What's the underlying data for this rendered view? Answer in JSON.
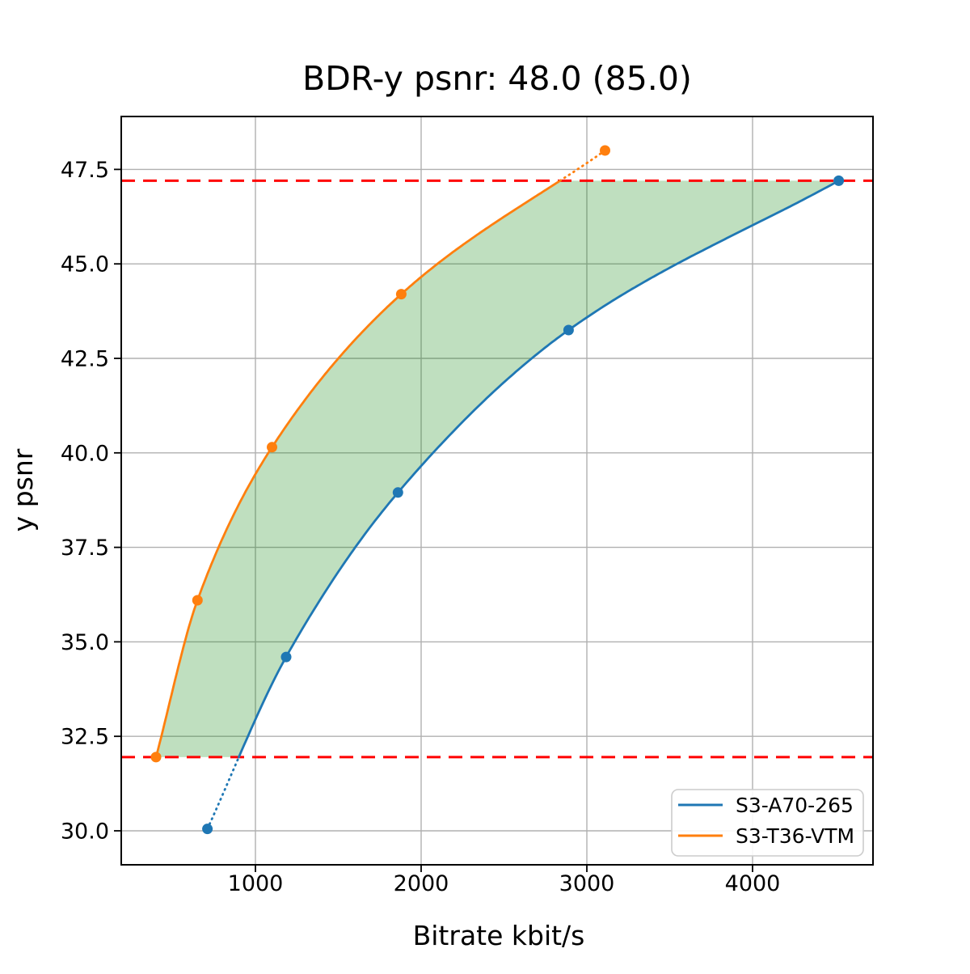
{
  "figure": {
    "background": "#ffffff"
  },
  "chart_data": {
    "type": "line",
    "title": "BDR-y psnr: 48.0 (85.0)",
    "xlabel": "Bitrate kbit/s",
    "ylabel": "y psnr",
    "xlim": [
      190,
      4727
    ],
    "ylim": [
      29.1,
      48.9
    ],
    "grid": true,
    "grid_color": "#b0b0b0",
    "xticks": {
      "values": [
        1000,
        2000,
        3000,
        4000
      ],
      "labels": [
        "1000",
        "2000",
        "3000",
        "4000"
      ]
    },
    "yticks": {
      "values": [
        30.0,
        32.5,
        35.0,
        37.5,
        40.0,
        42.5,
        45.0,
        47.5
      ],
      "labels": [
        "30.0",
        "32.5",
        "35.0",
        "37.5",
        "40.0",
        "42.5",
        "45.0",
        "47.5"
      ]
    },
    "series": [
      {
        "name": "S3-A70-265",
        "color": "#1f77b4",
        "marker": "circle",
        "points": [
          [
            710,
            30.05
          ],
          [
            1185,
            34.6
          ],
          [
            1860,
            38.95
          ],
          [
            2890,
            43.25
          ],
          [
            4520,
            47.2
          ]
        ]
      },
      {
        "name": "S3-T36-VTM",
        "color": "#ff7f0e",
        "marker": "circle",
        "points": [
          [
            400,
            31.95
          ],
          [
            650,
            36.1
          ],
          [
            1100,
            40.15
          ],
          [
            1880,
            44.2
          ],
          [
            3110,
            48.0
          ]
        ]
      }
    ],
    "overlap_range": {
      "ymin": 31.95,
      "ymax": 47.2
    },
    "hlines": [
      {
        "y": 47.2,
        "color": "#ff0000",
        "style": "dashed"
      },
      {
        "y": 31.95,
        "color": "#ff0000",
        "style": "dashed"
      }
    ],
    "band": {
      "color": "#008000",
      "opacity": 0.25
    },
    "legend": {
      "position": "lower right",
      "entries": [
        "S3-A70-265",
        "S3-T36-VTM"
      ]
    }
  }
}
